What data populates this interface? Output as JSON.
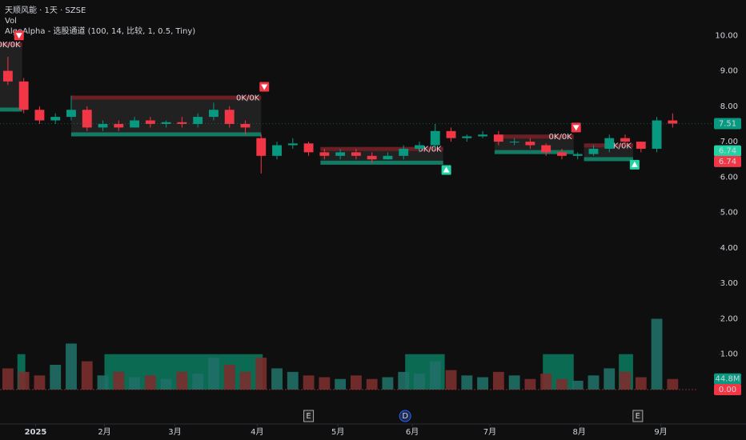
{
  "header": {
    "symbol": "天顺风能 · 1天 · SZSE",
    "volume": "Vol",
    "indicator": "AlgoAlpha - 选股通道 (100, 14, 比较, 1, 0.5, Tiny)"
  },
  "chart_data": {
    "type": "candlestick",
    "xlim": [
      -0.5,
      43.5
    ],
    "ylim": [
      0,
      11
    ],
    "xticks": [
      {
        "value": 1.75,
        "label": "2025"
      },
      {
        "value": 6.1,
        "label": "2月"
      },
      {
        "value": 10.55,
        "label": "3月"
      },
      {
        "value": 15.75,
        "label": "4月"
      },
      {
        "value": 20.85,
        "label": "5月"
      },
      {
        "value": 25.55,
        "label": "6月"
      },
      {
        "value": 30.45,
        "label": "7月"
      },
      {
        "value": 36.1,
        "label": "8月"
      },
      {
        "value": 41.25,
        "label": "9月"
      }
    ],
    "yticks": [
      {
        "value": 0,
        "label": "0.00"
      },
      {
        "value": 1,
        "label": "1.00"
      },
      {
        "value": 2,
        "label": "2.00"
      },
      {
        "value": 3,
        "label": "3.00"
      },
      {
        "value": 4,
        "label": "4.00"
      },
      {
        "value": 5,
        "label": "5.00"
      },
      {
        "value": 6,
        "label": "6.00"
      },
      {
        "value": 7,
        "label": "7.00"
      },
      {
        "value": 8,
        "label": "8.00"
      },
      {
        "value": 9,
        "label": "9.00"
      },
      {
        "value": 10,
        "label": "10.00"
      }
    ],
    "up_color": "#089981",
    "down_color": "#f23645",
    "ohlc": [
      [
        9.0,
        9.4,
        8.6,
        8.7
      ],
      [
        8.7,
        8.8,
        7.8,
        7.9
      ],
      [
        7.9,
        8.0,
        7.5,
        7.6
      ],
      [
        7.6,
        7.8,
        7.5,
        7.7
      ],
      [
        7.7,
        8.3,
        7.6,
        7.9
      ],
      [
        7.9,
        8.0,
        7.3,
        7.4
      ],
      [
        7.4,
        7.6,
        7.3,
        7.5
      ],
      [
        7.5,
        7.6,
        7.3,
        7.4
      ],
      [
        7.4,
        7.7,
        7.4,
        7.6
      ],
      [
        7.6,
        7.7,
        7.4,
        7.5
      ],
      [
        7.5,
        7.6,
        7.4,
        7.55
      ],
      [
        7.55,
        7.7,
        7.4,
        7.5
      ],
      [
        7.5,
        7.8,
        7.4,
        7.7
      ],
      [
        7.7,
        8.1,
        7.6,
        7.9
      ],
      [
        7.9,
        8.0,
        7.4,
        7.5
      ],
      [
        7.5,
        7.6,
        7.2,
        7.4
      ],
      [
        7.1,
        7.2,
        6.1,
        6.6
      ],
      [
        6.6,
        7.0,
        6.5,
        6.9
      ],
      [
        6.9,
        7.1,
        6.8,
        6.95
      ],
      [
        6.95,
        7.0,
        6.6,
        6.7
      ],
      [
        6.7,
        6.8,
        6.5,
        6.6
      ],
      [
        6.6,
        6.8,
        6.5,
        6.7
      ],
      [
        6.7,
        6.8,
        6.5,
        6.6
      ],
      [
        6.6,
        6.7,
        6.4,
        6.5
      ],
      [
        6.5,
        6.7,
        6.5,
        6.6
      ],
      [
        6.6,
        6.9,
        6.5,
        6.8
      ],
      [
        6.8,
        7.0,
        6.7,
        6.9
      ],
      [
        6.9,
        7.5,
        6.8,
        7.3
      ],
      [
        7.3,
        7.4,
        7.0,
        7.1
      ],
      [
        7.1,
        7.2,
        7.0,
        7.15
      ],
      [
        7.15,
        7.3,
        7.1,
        7.2
      ],
      [
        7.2,
        7.3,
        6.9,
        7.0
      ],
      [
        7.0,
        7.1,
        6.9,
        7.0
      ],
      [
        7.0,
        7.1,
        6.8,
        6.9
      ],
      [
        6.9,
        6.95,
        6.6,
        6.7
      ],
      [
        6.7,
        6.8,
        6.5,
        6.6
      ],
      [
        6.6,
        6.7,
        6.5,
        6.65
      ],
      [
        6.65,
        6.9,
        6.6,
        6.8
      ],
      [
        6.8,
        7.2,
        6.7,
        7.1
      ],
      [
        7.1,
        7.2,
        6.9,
        7.0
      ],
      [
        7.0,
        7.0,
        6.7,
        6.8
      ],
      [
        6.8,
        7.7,
        6.7,
        7.6
      ],
      [
        7.6,
        7.8,
        7.4,
        7.51
      ]
    ],
    "volume": [
      0.6,
      0.5,
      0.4,
      0.7,
      1.3,
      0.8,
      0.4,
      0.5,
      0.35,
      0.4,
      0.3,
      0.5,
      0.45,
      0.9,
      0.7,
      0.5,
      0.9,
      0.6,
      0.5,
      0.4,
      0.35,
      0.3,
      0.4,
      0.3,
      0.35,
      0.5,
      0.45,
      0.8,
      0.55,
      0.4,
      0.35,
      0.5,
      0.4,
      0.3,
      0.45,
      0.3,
      0.25,
      0.4,
      0.6,
      0.5,
      0.35,
      2.0,
      0.3
    ],
    "boxes": [
      {
        "start": -0.5,
        "end": 0.9,
        "top": 9.8,
        "bottom": 7.85,
        "label": "0K/0K"
      },
      {
        "start": 4,
        "end": 16,
        "top": 8.3,
        "bottom": 7.15,
        "label": "0K/0K"
      },
      {
        "start": 19.75,
        "end": 27.5,
        "top": 6.85,
        "bottom": 6.35,
        "label": "0K/0K"
      },
      {
        "start": 30.75,
        "end": 35.75,
        "top": 7.2,
        "bottom": 6.65,
        "label": "0K/0K"
      },
      {
        "start": 36.4,
        "end": 39.5,
        "top": 6.95,
        "bottom": 6.45,
        "label": "0K/0K"
      }
    ],
    "zones": [
      {
        "start": 0.6,
        "end": 1.1,
        "value": 1
      },
      {
        "start": 6.1,
        "end": 16.1,
        "value": 1
      },
      {
        "start": 25.1,
        "end": 27.6,
        "value": 1
      },
      {
        "start": 33.8,
        "end": 35.75,
        "value": 1
      },
      {
        "start": 38.6,
        "end": 39.5,
        "value": 1
      }
    ],
    "signals": [
      {
        "x": 0.7,
        "y": 10.0,
        "dir": "down"
      },
      {
        "x": 16.2,
        "y": 8.55,
        "dir": "down"
      },
      {
        "x": 35.9,
        "y": 7.4,
        "dir": "down"
      },
      {
        "x": 27.7,
        "y": 6.2,
        "dir": "up"
      },
      {
        "x": 39.6,
        "y": 6.35,
        "dir": "up"
      }
    ],
    "price_labels": [
      {
        "value": 7.51,
        "color": "#089981"
      },
      {
        "value": 6.74,
        "color": "#22d3a6"
      },
      {
        "value": 6.74,
        "color": "#f23645"
      }
    ],
    "volume_label": {
      "label": "44.8M",
      "value": 0.3,
      "color": "#089981"
    },
    "zero_label": {
      "value": 0,
      "label": "0.00",
      "color": "#f23645"
    },
    "events": [
      {
        "x": 19.0,
        "label": "E"
      },
      {
        "x": 25.1,
        "label": "D"
      },
      {
        "x": 39.8,
        "label": "E"
      }
    ]
  }
}
